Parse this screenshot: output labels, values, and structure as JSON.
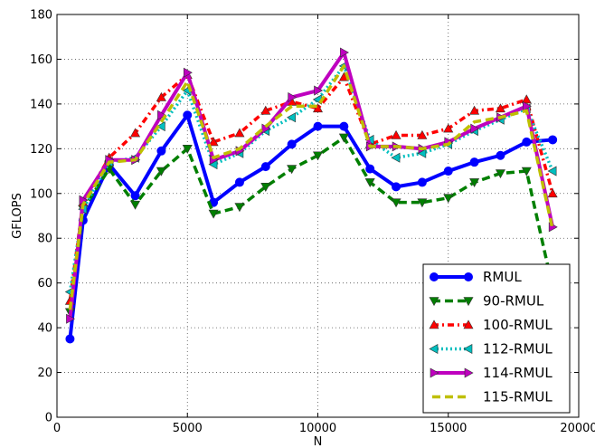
{
  "chart_data": {
    "type": "line",
    "title": "",
    "xlabel": "N",
    "ylabel": "GFLOPS",
    "xlim": [
      0,
      20000
    ],
    "ylim": [
      0,
      180
    ],
    "xticks": [
      0,
      5000,
      10000,
      15000,
      20000
    ],
    "yticks": [
      0,
      20,
      40,
      60,
      80,
      100,
      120,
      140,
      160,
      180
    ],
    "xtick_labels": [
      "0",
      "5000",
      "10000",
      "15000",
      "20000"
    ],
    "ytick_labels": [
      "0",
      "20",
      "40",
      "60",
      "80",
      "100",
      "120",
      "140",
      "160",
      "180"
    ],
    "grid": true,
    "legend_position": "lower-right",
    "x": [
      500,
      1000,
      2000,
      3000,
      4000,
      5000,
      6000,
      7000,
      8000,
      9000,
      10000,
      11000,
      12000,
      13000,
      14000,
      15000,
      16000,
      17000,
      18000,
      19000
    ],
    "series": [
      {
        "name": "RMUL",
        "color": "#0000ff",
        "linestyle": "solid",
        "marker": "circle",
        "values": [
          35,
          88,
          113,
          99,
          119,
          135,
          96,
          105,
          112,
          122,
          130,
          130,
          111,
          103,
          105,
          110,
          114,
          117,
          123,
          124
        ]
      },
      {
        "name": "90-RMUL",
        "color": "#007f00",
        "linestyle": "dashed",
        "marker": "triangle-down",
        "values": [
          47,
          93,
          111,
          95,
          110,
          120,
          91,
          94,
          103,
          111,
          117,
          125,
          105,
          96,
          96,
          98,
          105,
          109,
          110,
          58
        ]
      },
      {
        "name": "100-RMUL",
        "color": "#ff0000",
        "linestyle": "dashdot",
        "marker": "triangle-up",
        "values": [
          52,
          96,
          116,
          127,
          143,
          153,
          123,
          127,
          137,
          141,
          138,
          152,
          122,
          126,
          126,
          129,
          137,
          138,
          142,
          100
        ]
      },
      {
        "name": "112-RMUL",
        "color": "#00bfbf",
        "linestyle": "dotted",
        "marker": "triangle-left",
        "values": [
          56,
          93,
          114,
          116,
          130,
          146,
          113,
          118,
          128,
          134,
          142,
          157,
          124,
          116,
          118,
          122,
          128,
          133,
          138,
          110
        ]
      },
      {
        "name": "114-RMUL",
        "color": "#bf00bf",
        "linestyle": "solid",
        "marker": "triangle-right",
        "values": [
          44,
          97,
          115,
          115,
          135,
          154,
          115,
          119,
          129,
          143,
          146,
          163,
          121,
          121,
          120,
          123,
          129,
          134,
          139,
          85
        ]
      },
      {
        "name": "115-RMUL",
        "color": "#bfbf00",
        "linestyle": "dashed",
        "marker": "none",
        "values": [
          48,
          95,
          114,
          115,
          132,
          150,
          116,
          120,
          130,
          139,
          139,
          157,
          121,
          121,
          120,
          122,
          132,
          134,
          137,
          84
        ]
      }
    ]
  }
}
